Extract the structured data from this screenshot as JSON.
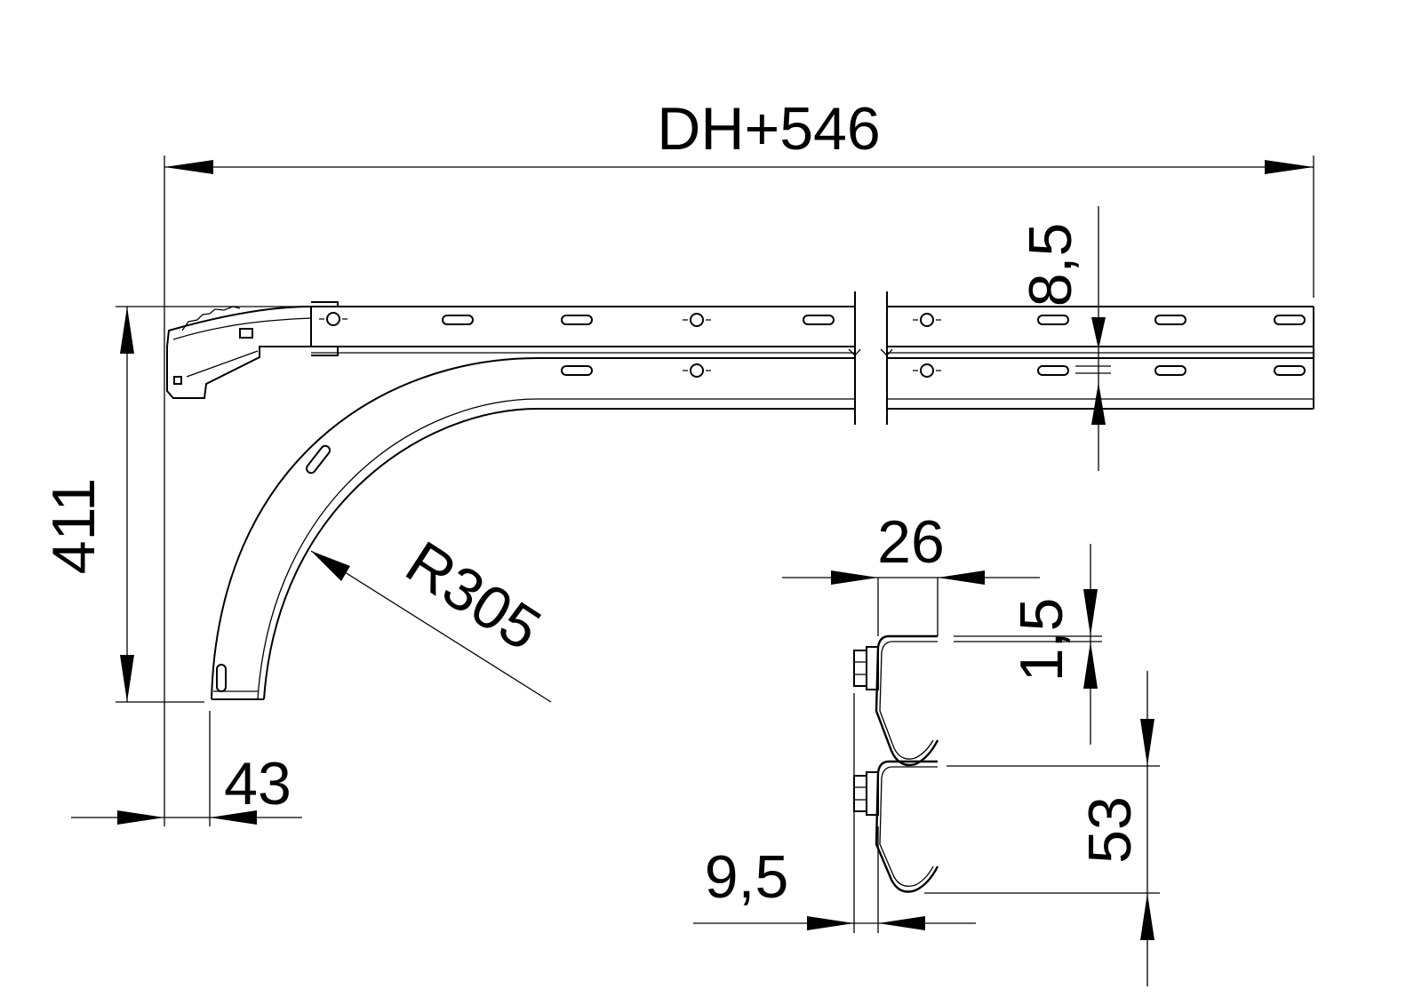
{
  "drawing": {
    "dimensions": {
      "overall_length": "DH+546",
      "rail_gap": "8,5",
      "height": "411",
      "radius": "R305",
      "end_offset": "43",
      "bracket_width": "26",
      "bracket_thickness": "1,5",
      "bracket_pitch": "53",
      "bracket_offset": "9,5"
    }
  }
}
